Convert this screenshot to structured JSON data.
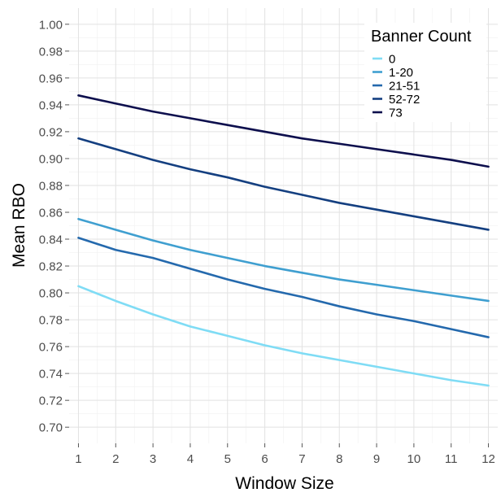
{
  "chart_data": {
    "type": "line",
    "title": "",
    "xlabel": "Window Size",
    "ylabel": "Mean RBO",
    "x": [
      1,
      2,
      3,
      4,
      5,
      6,
      7,
      8,
      9,
      10,
      11,
      12
    ],
    "xticks": [
      "1",
      "2",
      "3",
      "4",
      "5",
      "6",
      "7",
      "8",
      "9",
      "10",
      "11",
      "12"
    ],
    "xlim": [
      0.75,
      12.25
    ],
    "ylim": [
      0.688,
      1.012
    ],
    "yticks": [
      "0.70",
      "0.72",
      "0.74",
      "0.76",
      "0.78",
      "0.80",
      "0.82",
      "0.84",
      "0.86",
      "0.88",
      "0.90",
      "0.92",
      "0.94",
      "0.96",
      "0.98",
      "1.00"
    ],
    "grid": true,
    "legend": {
      "title": "Banner Count",
      "placement": "top-right"
    },
    "series": [
      {
        "name": "0",
        "color": "#7fdcf5",
        "values": [
          0.805,
          0.794,
          0.784,
          0.775,
          0.768,
          0.761,
          0.755,
          0.75,
          0.745,
          0.74,
          0.735,
          0.731
        ]
      },
      {
        "name": "1-20",
        "color": "#3f9fd0",
        "values": [
          0.855,
          0.847,
          0.839,
          0.832,
          0.826,
          0.82,
          0.815,
          0.81,
          0.806,
          0.802,
          0.798,
          0.794
        ]
      },
      {
        "name": "21-51",
        "color": "#2469ad",
        "values": [
          0.841,
          0.832,
          0.826,
          0.818,
          0.81,
          0.803,
          0.797,
          0.79,
          0.784,
          0.779,
          0.773,
          0.767
        ]
      },
      {
        "name": "52-72",
        "color": "#143f80",
        "values": [
          0.915,
          0.907,
          0.899,
          0.892,
          0.886,
          0.879,
          0.873,
          0.867,
          0.862,
          0.857,
          0.852,
          0.847
        ]
      },
      {
        "name": "73",
        "color": "#0d0f4d",
        "values": [
          0.947,
          0.941,
          0.935,
          0.93,
          0.925,
          0.92,
          0.915,
          0.911,
          0.907,
          0.903,
          0.899,
          0.894
        ]
      }
    ]
  }
}
